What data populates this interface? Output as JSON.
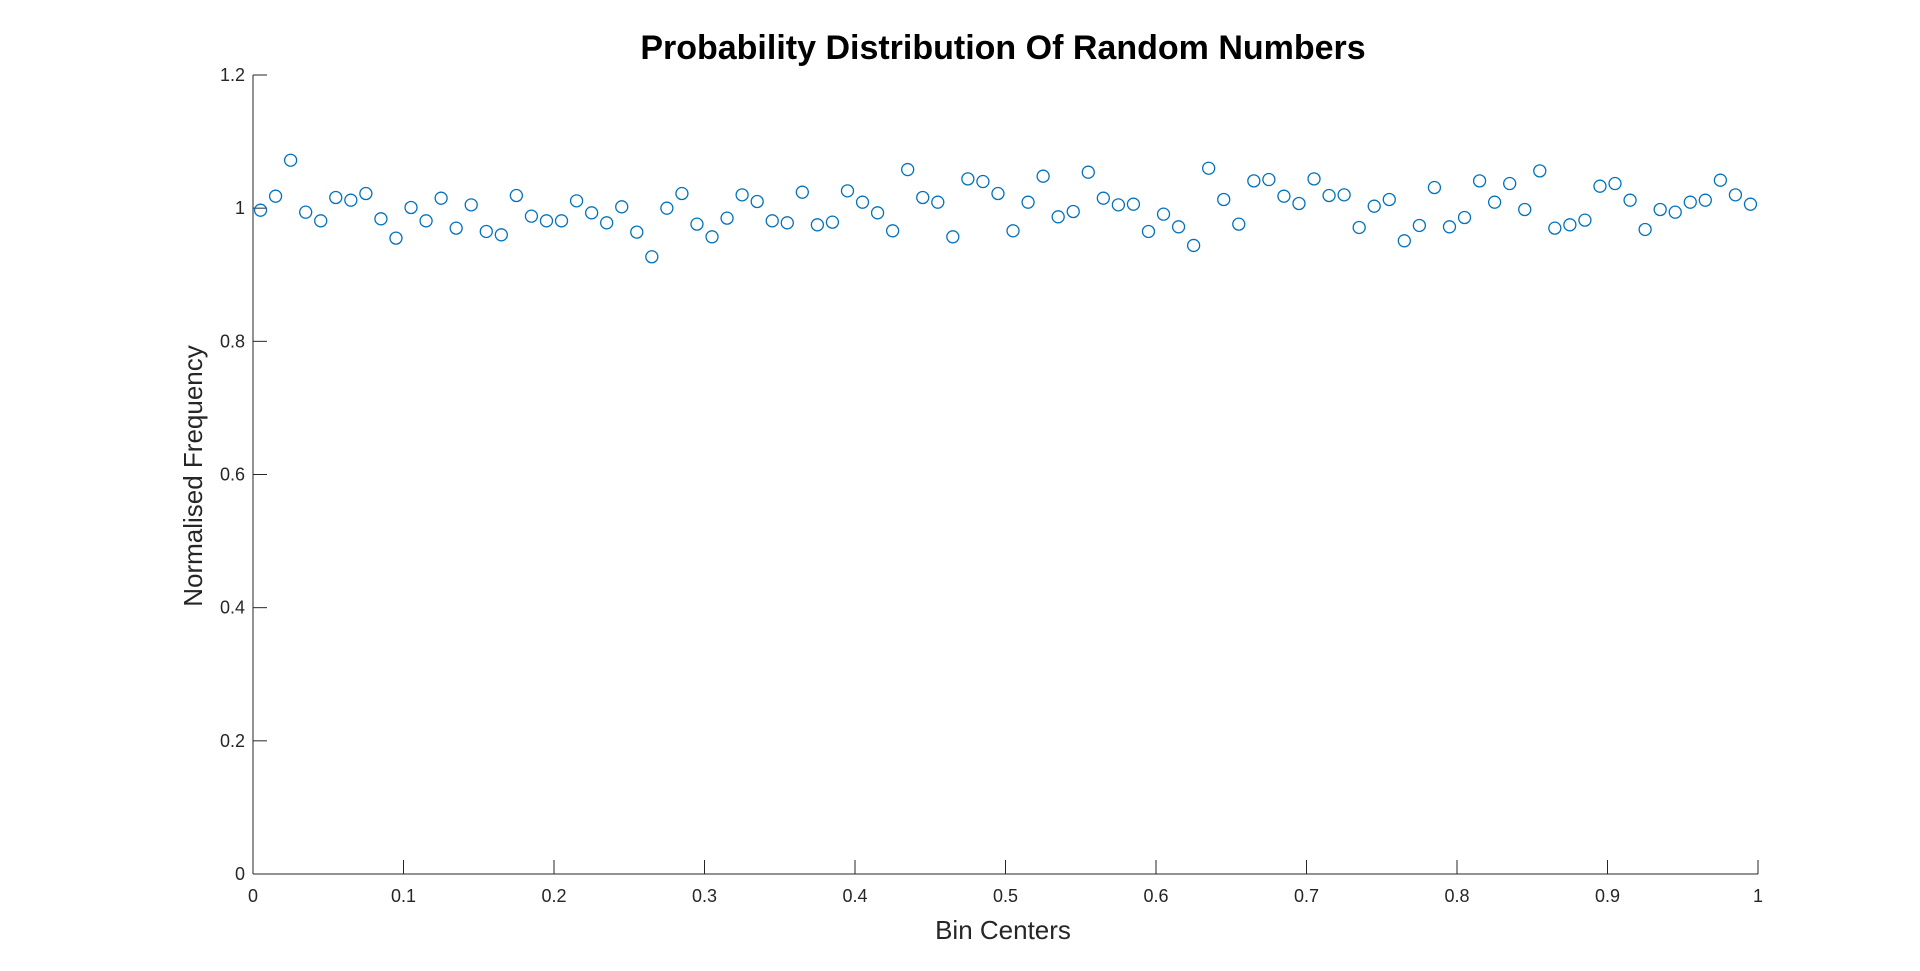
{
  "chart_data": {
    "type": "scatter",
    "title": "Probability Distribution Of Random Numbers",
    "xlabel": "Bin Centers",
    "ylabel": "Normalised Frequency",
    "xlim": [
      0,
      1
    ],
    "ylim": [
      0,
      1.2
    ],
    "xticks": [
      0,
      0.1,
      0.2,
      0.3,
      0.4,
      0.5,
      0.6,
      0.7,
      0.8,
      0.9,
      1
    ],
    "xtick_labels": [
      "0",
      "0.1",
      "0.2",
      "0.3",
      "0.4",
      "0.5",
      "0.6",
      "0.7",
      "0.8",
      "0.9",
      "1"
    ],
    "yticks": [
      0,
      0.2,
      0.4,
      0.6,
      0.8,
      1,
      1.2
    ],
    "ytick_labels": [
      "0",
      "0.2",
      "0.4",
      "0.6",
      "0.8",
      "1",
      "1.2"
    ],
    "grid": false,
    "marker": "open-circle",
    "marker_color": "#0072BD",
    "axis_color": "#262626",
    "x": [
      0.005,
      0.015,
      0.025,
      0.035,
      0.045,
      0.055,
      0.065,
      0.075,
      0.085,
      0.095,
      0.105,
      0.115,
      0.125,
      0.135,
      0.145,
      0.155,
      0.165,
      0.175,
      0.185,
      0.195,
      0.205,
      0.215,
      0.225,
      0.235,
      0.245,
      0.255,
      0.265,
      0.275,
      0.285,
      0.295,
      0.305,
      0.315,
      0.325,
      0.335,
      0.345,
      0.355,
      0.365,
      0.375,
      0.385,
      0.395,
      0.405,
      0.415,
      0.425,
      0.435,
      0.445,
      0.455,
      0.465,
      0.475,
      0.485,
      0.495,
      0.505,
      0.515,
      0.525,
      0.535,
      0.545,
      0.555,
      0.565,
      0.575,
      0.585,
      0.595,
      0.605,
      0.615,
      0.625,
      0.635,
      0.645,
      0.655,
      0.665,
      0.675,
      0.685,
      0.695,
      0.705,
      0.715,
      0.725,
      0.735,
      0.745,
      0.755,
      0.765,
      0.775,
      0.785,
      0.795,
      0.805,
      0.815,
      0.825,
      0.835,
      0.845,
      0.855,
      0.865,
      0.875,
      0.885,
      0.895,
      0.905,
      0.915,
      0.925,
      0.935,
      0.945,
      0.955,
      0.965,
      0.975,
      0.985,
      0.995
    ],
    "y": [
      0.997,
      1.018,
      1.072,
      0.994,
      0.981,
      1.016,
      1.012,
      1.022,
      0.984,
      0.955,
      1.001,
      0.981,
      1.015,
      0.97,
      1.005,
      0.965,
      0.96,
      1.019,
      0.988,
      0.981,
      0.981,
      1.011,
      0.993,
      0.978,
      1.002,
      0.964,
      0.927,
      1.0,
      1.022,
      0.976,
      0.957,
      0.985,
      1.02,
      1.01,
      0.981,
      0.978,
      1.024,
      0.975,
      0.979,
      1.026,
      1.009,
      0.993,
      0.966,
      1.058,
      1.016,
      1.009,
      0.957,
      1.044,
      1.04,
      1.022,
      0.966,
      1.009,
      1.048,
      0.987,
      0.995,
      1.054,
      1.015,
      1.005,
      1.006,
      0.965,
      0.991,
      0.972,
      0.944,
      1.06,
      1.013,
      0.976,
      1.041,
      1.043,
      1.018,
      1.007,
      1.044,
      1.019,
      1.02,
      0.971,
      1.003,
      1.013,
      0.951,
      0.974,
      1.031,
      0.972,
      0.986,
      1.041,
      1.009,
      1.037,
      0.998,
      1.056,
      0.97,
      0.975,
      0.982,
      1.033,
      1.037,
      1.012,
      0.968,
      0.998,
      0.994,
      1.009,
      1.012,
      1.042,
      1.02,
      1.006
    ]
  }
}
